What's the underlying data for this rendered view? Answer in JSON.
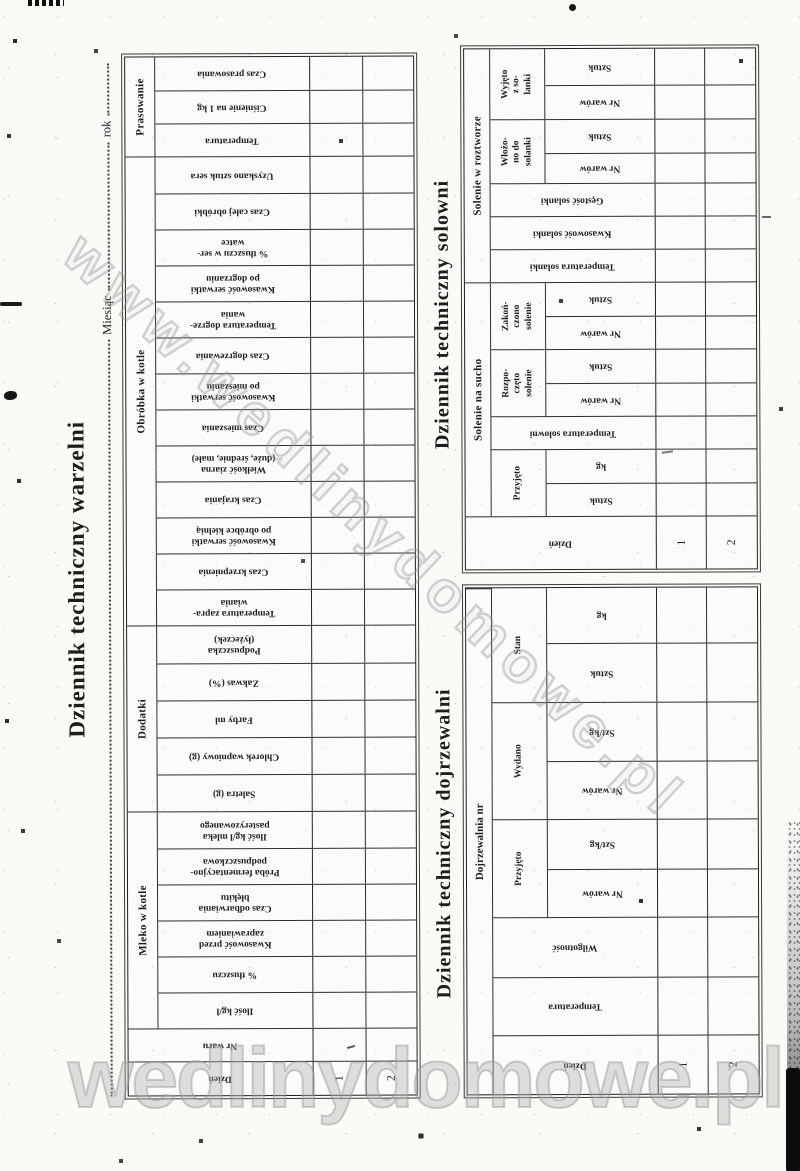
{
  "watermarks": {
    "diagonal": "www.wedlinydomowe.pl",
    "bottom": "wedlinydomowe.pl"
  },
  "warzelni": {
    "title": "Dziennik techniczny warzelni",
    "miesiac_label": "Miesiąc",
    "rok_label": "rok",
    "dzien": "Dzień",
    "nr_waru": "Nr waru",
    "groups": [
      {
        "label": "Mleko w kotle",
        "cols": [
          "Ilość kg/l",
          "% tłuszczu",
          "Kwasowość przed\nzaprawianiem",
          "Czas odbarwiania\nbłękitu",
          "Próba fermentacyjno-\npodpuszczkowa",
          "Ilość kg/l mleka\npasteryzowanego"
        ]
      },
      {
        "label": "Dodatki",
        "cols": [
          "Saletra (g)",
          "Chlorek wapniowy (g)",
          "Farby ml",
          "Zakwas (%)",
          "Podpuszczka\n(łyżeczek)"
        ]
      },
      {
        "label": "Obróbka w kotle",
        "cols": [
          "Temperatura zapra-\nwiania",
          "Czas krzepnienia",
          "Kwasowość serwatki\npo obróbce kielnią",
          "Czas krajania",
          "Wielkość ziarna\n(duże, średnie, małe)",
          "Czas mieszania",
          "Kwasowość serwatki\npo mieszaniu",
          "Czas dogrzewania",
          "Temperatura dogrze-\nwania",
          "Kwasowość serwatki\npo dogrzaniu",
          "% tłuszczu w ser-\nwatce",
          "Czas całej obróbki",
          "Uzyskano sztuk sera"
        ]
      },
      {
        "label": "Prasowanie",
        "cols": [
          "Temperatura",
          "Ciśnienie na 1 kg",
          "Czas prasowania"
        ]
      }
    ],
    "rows": [
      "1",
      "2"
    ]
  },
  "solowni": {
    "title": "Dziennik techniczny solowni",
    "dzien": "Dzień",
    "na_sucho": {
      "label": "Solenie na sucho",
      "przyjeto": {
        "label": "Przyjęto",
        "cols": [
          "Sztuk",
          "kg"
        ]
      },
      "temperatura_solowni": "Temperatura solowni",
      "rozpoczeto": {
        "label": "Rozpo-\nczęto\nsolenie",
        "cols": [
          "Nr warów",
          "Sztuk"
        ]
      },
      "zakonczono": {
        "label": "Zakoń-\nczono\nsolenie",
        "cols": [
          "Nr warów",
          "Sztuk"
        ]
      }
    },
    "w_roztworze": {
      "label": "Solenie w roztworze",
      "temperatura_solanki": "Temperatura solanki",
      "kwasowosc_solanki": "Kwasowość solanki",
      "gestosc_solanki": "Gęstość solanki",
      "wlozono": {
        "label": "Włożo-\nno do\nsolanki",
        "cols": [
          "Nr warów",
          "Sztuk"
        ]
      },
      "wyjeto": {
        "label": "Wyjęto\nz so-\nlanki",
        "cols": [
          "Nr warów",
          "Sztuk"
        ]
      }
    },
    "rows": [
      "1",
      "2"
    ]
  },
  "dojrzewalni": {
    "title": "Dziennik techniczny dojrzewalni",
    "header": "Dojrzewalnia nr",
    "dzien": "Dzień",
    "temperatura": "Temperatura",
    "wilgotnosc": "Wilgotność",
    "groups": [
      {
        "label": "Przyjęto",
        "cols": [
          "Nr warów",
          "Szt/kg"
        ]
      },
      {
        "label": "Wydano",
        "cols": [
          "Nr warów",
          "Szt/kg"
        ]
      },
      {
        "label": "Stan",
        "cols": [
          "Sztuk",
          "kg"
        ]
      }
    ],
    "rows": [
      "1",
      "2"
    ]
  }
}
